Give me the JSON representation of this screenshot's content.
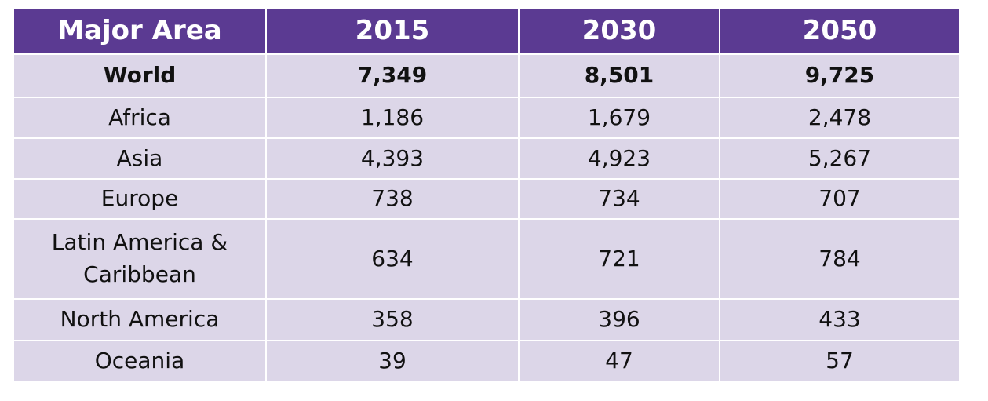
{
  "table": {
    "header": [
      "Major Area",
      "2015",
      "2030",
      "2050"
    ],
    "rows": [
      [
        "World",
        "7,349",
        "8,501",
        "9,725"
      ],
      [
        "Africa",
        "1,186",
        "1,679",
        "2,478"
      ],
      [
        "Asia",
        "4,393",
        "4,923",
        "5,267"
      ],
      [
        "Europe",
        "738",
        "734",
        "707"
      ],
      [
        "Latin America & Caribbean",
        "634",
        "721",
        "784"
      ],
      [
        "North America",
        "358",
        "396",
        "433"
      ],
      [
        "Oceania",
        "39",
        "47",
        "57"
      ]
    ]
  }
}
